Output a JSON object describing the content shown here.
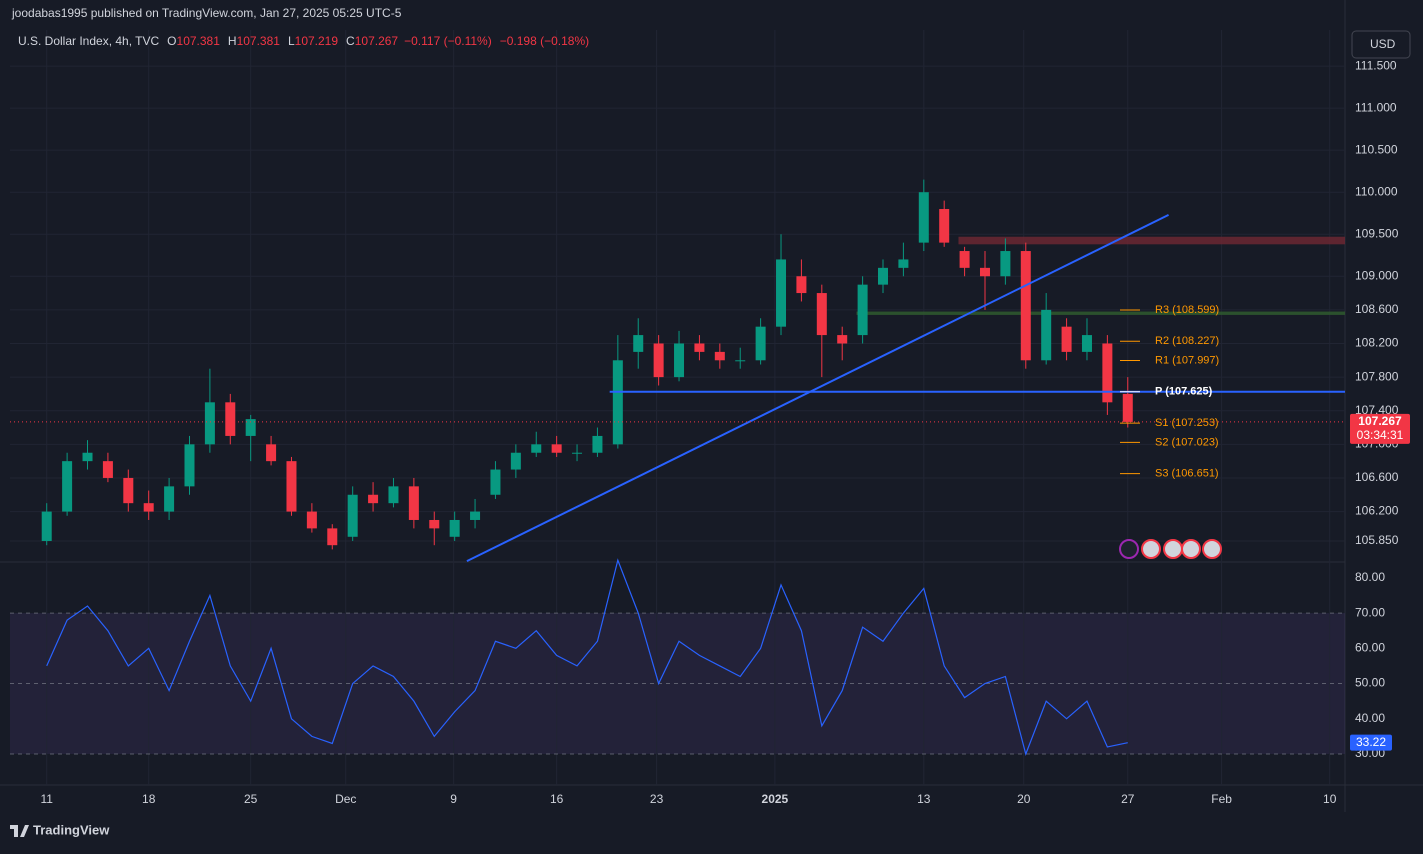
{
  "header": {
    "published": "joodabas1995 published on TradingView.com, Jan 27, 2025 05:25 UTC-5",
    "symbol": "U.S. Dollar Index, 4h, TVC",
    "ohlc": [
      {
        "key": "O",
        "value": "107.381"
      },
      {
        "key": "H",
        "value": "107.381"
      },
      {
        "key": "L",
        "value": "107.219"
      },
      {
        "key": "C",
        "value": "107.267"
      }
    ],
    "change": "−0.117 (−0.11%)",
    "change_day": "−0.198 (−0.18%)",
    "currency": "USD",
    "brand": "TradingView"
  },
  "chart_data": [
    {
      "type": "candlestick",
      "up_color": "#089981",
      "down_color": "#f23645",
      "x": [
        0,
        1,
        2,
        3,
        4,
        5,
        6,
        7,
        8,
        9,
        10,
        11,
        12,
        13,
        14,
        15,
        16,
        17,
        18,
        19,
        20,
        21,
        22,
        23,
        24,
        25,
        26,
        27,
        28,
        29,
        30,
        31,
        32,
        33,
        34,
        35,
        36,
        37,
        38,
        39,
        40,
        41,
        42,
        43,
        44,
        45,
        46,
        47,
        48,
        49,
        50,
        51,
        52,
        53
      ],
      "open": [
        105.85,
        106.2,
        106.8,
        106.8,
        106.6,
        106.3,
        106.2,
        106.5,
        107.0,
        107.5,
        107.1,
        107.0,
        106.8,
        106.2,
        106.0,
        105.9,
        106.4,
        106.3,
        106.5,
        106.1,
        105.9,
        106.1,
        106.4,
        106.7,
        106.9,
        107.0,
        106.9,
        106.9,
        107.0,
        108.1,
        108.2,
        107.8,
        108.2,
        108.1,
        108.0,
        108.0,
        108.4,
        109.0,
        108.8,
        108.3,
        108.3,
        108.9,
        109.1,
        109.4,
        109.8,
        109.3,
        109.1,
        109.0,
        109.3,
        108.0,
        108.4,
        108.1,
        108.2,
        107.6
      ],
      "high": [
        106.3,
        106.9,
        107.05,
        106.9,
        106.7,
        106.45,
        106.6,
        107.1,
        107.9,
        107.6,
        107.35,
        107.1,
        106.85,
        106.3,
        106.05,
        106.5,
        106.55,
        106.6,
        106.6,
        106.2,
        106.2,
        106.35,
        106.8,
        107.0,
        107.15,
        107.1,
        107.0,
        107.2,
        108.3,
        108.5,
        108.3,
        108.35,
        108.3,
        108.2,
        108.15,
        108.5,
        109.5,
        109.2,
        108.9,
        108.4,
        109.0,
        109.2,
        109.4,
        110.15,
        109.9,
        109.35,
        109.3,
        109.45,
        109.4,
        108.8,
        108.5,
        108.5,
        108.3,
        107.8
      ],
      "low": [
        105.8,
        106.15,
        106.7,
        106.55,
        106.2,
        106.1,
        106.1,
        106.4,
        106.9,
        107.0,
        106.8,
        106.75,
        106.15,
        105.95,
        105.75,
        105.85,
        106.2,
        106.25,
        106.0,
        105.8,
        105.85,
        106.0,
        106.35,
        106.6,
        106.85,
        106.85,
        106.8,
        106.85,
        106.95,
        107.9,
        107.7,
        107.75,
        108.0,
        107.9,
        107.9,
        107.95,
        108.3,
        108.7,
        107.8,
        108.0,
        108.2,
        108.8,
        109.0,
        109.3,
        109.35,
        109.0,
        108.6,
        108.9,
        107.9,
        107.95,
        108.0,
        108.0,
        107.35,
        107.2
      ],
      "close": [
        106.2,
        106.8,
        106.9,
        106.6,
        106.3,
        106.2,
        106.5,
        107.0,
        107.5,
        107.1,
        107.3,
        106.8,
        106.2,
        106.0,
        105.8,
        106.4,
        106.3,
        106.5,
        106.1,
        106.0,
        106.1,
        106.2,
        106.7,
        106.9,
        107.0,
        106.9,
        106.9,
        107.1,
        108.0,
        108.3,
        107.8,
        108.2,
        108.1,
        108.0,
        108.0,
        108.4,
        109.2,
        108.8,
        108.3,
        108.2,
        108.9,
        109.1,
        109.2,
        110.0,
        109.4,
        109.1,
        109.0,
        109.3,
        108.0,
        108.6,
        108.1,
        108.3,
        107.5,
        107.267
      ],
      "xlim": [
        -1.8,
        63.65
      ],
      "xticks": [
        {
          "value": 0,
          "label": "11"
        },
        {
          "value": 5,
          "label": "18"
        },
        {
          "value": 10,
          "label": "25"
        },
        {
          "value": 14.66,
          "label": "Dec"
        },
        {
          "value": 19.95,
          "label": "9"
        },
        {
          "value": 25,
          "label": "16"
        },
        {
          "value": 29.9,
          "label": "23"
        },
        {
          "value": 35.7,
          "label": "2025"
        },
        {
          "value": 43,
          "label": "13"
        },
        {
          "value": 47.9,
          "label": "20"
        },
        {
          "value": 53,
          "label": "27"
        },
        {
          "value": 57.6,
          "label": "Feb"
        },
        {
          "value": 62.9,
          "label": "10"
        }
      ],
      "ylim": [
        105.6,
        111.93
      ],
      "yticks": [
        {
          "value": 111.5,
          "label": "111.500"
        },
        {
          "value": 111,
          "label": "111.000"
        },
        {
          "value": 110.5,
          "label": "110.500"
        },
        {
          "value": 110,
          "label": "110.000"
        },
        {
          "value": 109.5,
          "label": "109.500"
        },
        {
          "value": 109,
          "label": "109.000"
        },
        {
          "value": 108.6,
          "label": "108.600"
        },
        {
          "value": 108.2,
          "label": "108.200"
        },
        {
          "value": 107.8,
          "label": "107.800"
        },
        {
          "value": 107.4,
          "label": "107.400"
        },
        {
          "value": 107,
          "label": "107.000"
        },
        {
          "value": 106.6,
          "label": "106.600"
        },
        {
          "value": 106.2,
          "label": "106.200"
        },
        {
          "value": 105.85,
          "label": "105.850"
        }
      ],
      "last_price": 107.267,
      "countdown": "03:34:31",
      "last_color": "#f23645",
      "pivots": [
        {
          "label": "R3 (108.599)",
          "value": 108.599,
          "color": "#ff9800"
        },
        {
          "label": "R2 (108.227)",
          "value": 108.227,
          "color": "#ff9800"
        },
        {
          "label": "R1 (107.997)",
          "value": 107.997,
          "color": "#ff9800"
        },
        {
          "label": "P (107.625)",
          "value": 107.625,
          "color": "#ffffff"
        },
        {
          "label": "S1 (107.253)",
          "value": 107.253,
          "color": "#ff9800"
        },
        {
          "label": "S2 (107.023)",
          "value": 107.023,
          "color": "#ff9800"
        },
        {
          "label": "S3 (106.651)",
          "value": 106.651,
          "color": "#ff9800"
        }
      ],
      "trend_lines": [
        {
          "x": [
            20.6,
            55
          ],
          "y": [
            105.61,
            109.73
          ],
          "color": "#2962ff"
        }
      ],
      "horizontal_lines": [
        {
          "y": 107.625,
          "x_start": 27.6,
          "color": "#2962ff"
        }
      ],
      "zones": [
        {
          "y": [
            109.38,
            109.47
          ],
          "x_start": 44.7,
          "color": "#6b2733"
        },
        {
          "y": [
            108.54,
            108.58
          ],
          "x_start": 39.7,
          "color": "#2f5a2f"
        }
      ]
    },
    {
      "type": "line",
      "color": "#2962ff",
      "x": [
        0,
        1,
        2,
        3,
        4,
        5,
        6,
        7,
        8,
        9,
        10,
        11,
        12,
        13,
        14,
        15,
        16,
        17,
        18,
        19,
        20,
        21,
        22,
        23,
        24,
        25,
        26,
        27,
        28,
        29,
        30,
        31,
        32,
        33,
        34,
        35,
        36,
        37,
        38,
        39,
        40,
        41,
        42,
        43,
        44,
        45,
        46,
        47,
        48,
        49,
        50,
        51,
        52,
        53
      ],
      "values": [
        55,
        68,
        72,
        65,
        55,
        60,
        48,
        62,
        75,
        55,
        45,
        60,
        40,
        35,
        33,
        50,
        55,
        52,
        45,
        35,
        42,
        48,
        62,
        60,
        65,
        58,
        55,
        62,
        85,
        70,
        50,
        62,
        58,
        55,
        52,
        60,
        78,
        65,
        38,
        48,
        66,
        62,
        70,
        77,
        55,
        46,
        50,
        52,
        30,
        45,
        40,
        45,
        32,
        33.22
      ],
      "ylim": [
        21.2,
        84.5
      ],
      "yticks": [
        {
          "value": 80,
          "label": "80.00"
        },
        {
          "value": 70,
          "label": "70.00"
        },
        {
          "value": 60,
          "label": "60.00"
        },
        {
          "value": 50,
          "label": "50.00"
        },
        {
          "value": 40,
          "label": "40.00"
        },
        {
          "value": 30,
          "label": "30.00"
        }
      ],
      "band": [
        30,
        70
      ],
      "middle": 50
    }
  ]
}
